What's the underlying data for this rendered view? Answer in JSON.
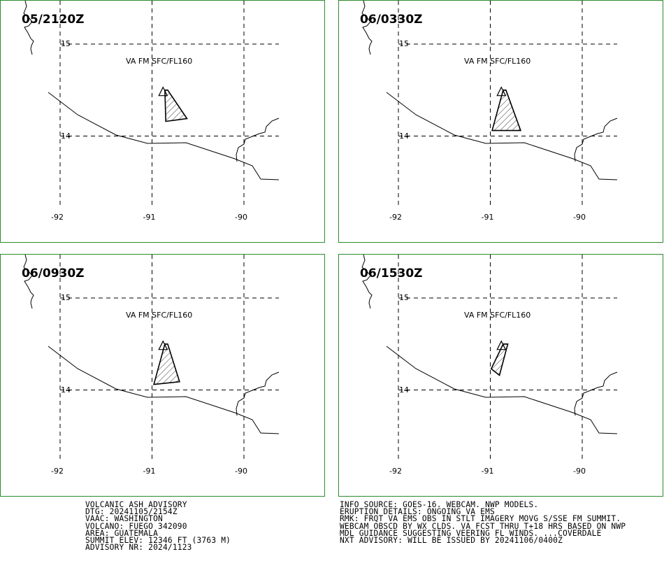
{
  "panels": [
    {
      "time": "05/2120Z",
      "level": "VA FM SFC/FL160",
      "polygon": [
        [
          -90.86,
          14.5
        ],
        [
          -90.83,
          14.5
        ],
        [
          -90.62,
          14.19
        ],
        [
          -90.85,
          14.16
        ]
      ]
    },
    {
      "time": "06/0330Z",
      "level": "VA FM SFC/FL160",
      "polygon": [
        [
          -90.86,
          14.5
        ],
        [
          -90.83,
          14.5
        ],
        [
          -90.67,
          14.06
        ],
        [
          -90.98,
          14.06
        ]
      ]
    },
    {
      "time": "06/0930Z",
      "level": "VA FM SFC/FL160",
      "polygon": [
        [
          -90.86,
          14.5
        ],
        [
          -90.83,
          14.5
        ],
        [
          -90.7,
          14.09
        ],
        [
          -90.98,
          14.06
        ]
      ]
    },
    {
      "time": "06/1530Z",
      "level": "VA FM SFC/FL160",
      "polygon": [
        [
          -90.81,
          14.5
        ],
        [
          -90.86,
          14.5
        ],
        [
          -90.99,
          14.23
        ],
        [
          -90.9,
          14.16
        ]
      ]
    }
  ],
  "axes": {
    "lat_ticks": [
      "15",
      "14"
    ],
    "lon_ticks": [
      "-92",
      "-91",
      "-90"
    ]
  },
  "volcano": {
    "lat": 14.47,
    "lon": -90.88
  },
  "info_left": [
    "VOLCANIC ASH ADVISORY",
    "DTG: 20241105/2154Z",
    "VAAC: WASHINGTON",
    "VOLCANO: FUEGO 342090",
    "AREA: GUATEMALA",
    "SUMMIT ELEV: 12346 FT (3763 M)",
    "ADVISORY NR: 2024/1123"
  ],
  "info_right": [
    "INFO SOURCE: GOES-16. WEBCAM. NWP MODELS.",
    "ERUPTION DETAILS: ONGOING VA EMS",
    "RMK: FRQT VA EMS OBS IN STLT IMAGERY MOVG S/SSE FM SUMMIT.",
    "WEBCAM OBSCD BY WX CLDS. VA FCST THRU T+18 HRS BASED ON NWP",
    "MDL GUIDANCE SUGGESTING VEERING FL WINDS. ...COVERDALE",
    "NXT ADVISORY: WILL BE ISSUED BY 20241106/0400Z"
  ],
  "colors": {
    "panel_border": "#2e8b2e",
    "line": "#000000"
  }
}
